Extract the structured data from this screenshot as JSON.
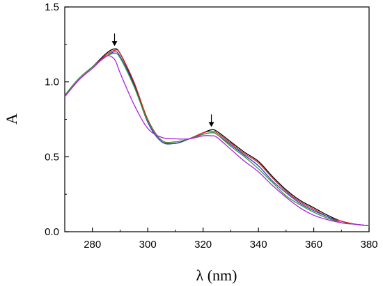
{
  "chart_data": {
    "type": "line",
    "xlabel": "λ (nm)",
    "ylabel": "A",
    "xlim": [
      270,
      380
    ],
    "ylim": [
      0.0,
      1.5
    ],
    "x_ticks": [
      280,
      300,
      320,
      340,
      360,
      380
    ],
    "x_tick_labels": [
      "280",
      "300",
      "320",
      "340",
      "360",
      "380"
    ],
    "y_ticks": [
      0.0,
      0.5,
      1.0,
      1.5
    ],
    "y_tick_labels": [
      "0.0",
      "0.5",
      "1.0",
      "1.5"
    ],
    "grid": false,
    "annotations": [
      {
        "type": "arrow-down",
        "x": 288,
        "y": 1.23
      },
      {
        "type": "arrow-down",
        "x": 323,
        "y": 0.69
      }
    ],
    "x": [
      270,
      275,
      280,
      285,
      288,
      290,
      295,
      300,
      305,
      310,
      315,
      320,
      323,
      325,
      330,
      335,
      340,
      345,
      350,
      355,
      360,
      365,
      370,
      375,
      380
    ],
    "series": [
      {
        "color": "#000000",
        "values": [
          0.91,
          1.02,
          1.1,
          1.19,
          1.22,
          1.19,
          0.99,
          0.74,
          0.61,
          0.59,
          0.62,
          0.66,
          0.68,
          0.67,
          0.6,
          0.53,
          0.47,
          0.37,
          0.28,
          0.21,
          0.16,
          0.11,
          0.07,
          0.05,
          0.04
        ]
      },
      {
        "color": "#e0201e",
        "values": [
          0.91,
          1.02,
          1.1,
          1.18,
          1.21,
          1.19,
          1.0,
          0.75,
          0.61,
          0.59,
          0.62,
          0.66,
          0.67,
          0.66,
          0.59,
          0.52,
          0.46,
          0.36,
          0.27,
          0.2,
          0.15,
          0.1,
          0.07,
          0.05,
          0.04
        ]
      },
      {
        "color": "#2a3fd8",
        "values": [
          0.91,
          1.02,
          1.1,
          1.17,
          1.2,
          1.17,
          0.98,
          0.73,
          0.6,
          0.59,
          0.62,
          0.65,
          0.66,
          0.65,
          0.58,
          0.51,
          0.44,
          0.34,
          0.26,
          0.19,
          0.14,
          0.1,
          0.06,
          0.05,
          0.04
        ]
      },
      {
        "color": "#2e9e2e",
        "values": [
          0.91,
          1.02,
          1.1,
          1.17,
          1.19,
          1.16,
          0.97,
          0.74,
          0.61,
          0.6,
          0.62,
          0.65,
          0.66,
          0.65,
          0.57,
          0.5,
          0.42,
          0.33,
          0.24,
          0.18,
          0.13,
          0.09,
          0.06,
          0.05,
          0.04
        ]
      },
      {
        "color": "#b020e0",
        "values": [
          0.9,
          1.01,
          1.09,
          1.17,
          1.15,
          1.06,
          0.85,
          0.69,
          0.63,
          0.62,
          0.62,
          0.64,
          0.64,
          0.63,
          0.55,
          0.47,
          0.4,
          0.31,
          0.23,
          0.16,
          0.11,
          0.08,
          0.06,
          0.05,
          0.04
        ]
      }
    ]
  }
}
